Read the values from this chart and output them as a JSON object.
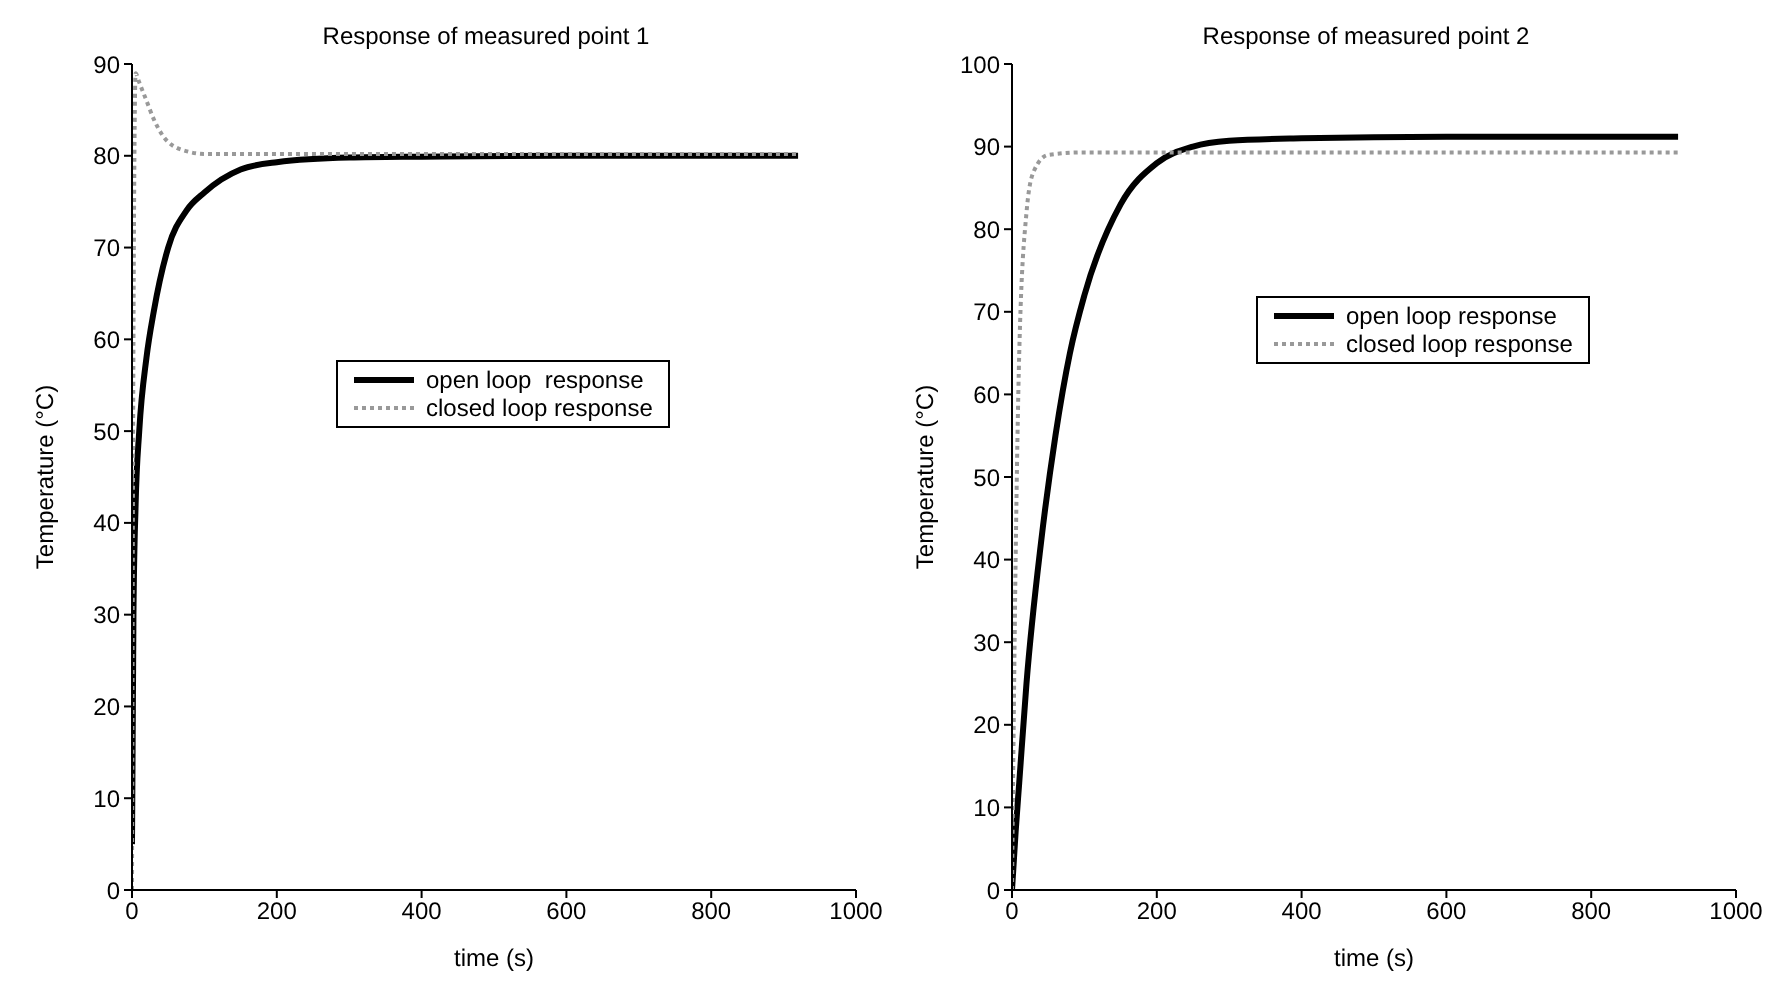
{
  "chart_data": [
    {
      "type": "line",
      "title": "Response of measured point 1",
      "xlabel": "time (s)",
      "ylabel": "Temperature (°C)",
      "xlim": [
        0,
        1000
      ],
      "xticks": [
        0,
        200,
        400,
        600,
        800,
        1000
      ],
      "ylim": [
        0,
        90
      ],
      "yticks": [
        0,
        10,
        20,
        30,
        40,
        50,
        60,
        70,
        80,
        90
      ],
      "grid": false,
      "legend": "center",
      "marker": "none",
      "series": [
        {
          "name": "open loop  response",
          "color": "#000000",
          "line_style": "solid",
          "x": [
            0,
            2,
            5,
            10,
            20,
            30,
            50,
            75,
            100,
            150,
            200,
            300,
            400,
            600,
            920
          ],
          "values": [
            5,
            30,
            42,
            50,
            58,
            63,
            70,
            74,
            76,
            78.5,
            79.3,
            79.8,
            79.9,
            80,
            80
          ]
        },
        {
          "name": "closed loop response",
          "color": "#999999",
          "line_style": "dotted",
          "x": [
            0,
            2,
            5,
            10,
            20,
            30,
            50,
            80,
            100,
            200,
            400,
            600,
            920
          ],
          "values": [
            0,
            60,
            89,
            88,
            86,
            84,
            81.5,
            80.4,
            80.2,
            80.2,
            80.2,
            80.2,
            80.2
          ]
        }
      ]
    },
    {
      "type": "line",
      "title": "Response of measured point 2",
      "xlabel": "time (s)",
      "ylabel": "Temperature (°C)",
      "xlim": [
        0,
        1000
      ],
      "xticks": [
        0,
        200,
        400,
        600,
        800,
        1000
      ],
      "ylim": [
        0,
        100
      ],
      "yticks": [
        0,
        10,
        20,
        30,
        40,
        50,
        60,
        70,
        80,
        90,
        100
      ],
      "grid": false,
      "legend": "center right",
      "marker": "none",
      "series": [
        {
          "name": "open loop response",
          "color": "#000000",
          "line_style": "solid",
          "x": [
            0,
            5,
            10,
            20,
            40,
            60,
            80,
            100,
            150,
            200,
            250,
            300,
            400,
            600,
            920
          ],
          "values": [
            0,
            7,
            13,
            25,
            42,
            55,
            65,
            72,
            83,
            88,
            90,
            90.7,
            91,
            91.2,
            91.2
          ]
        },
        {
          "name": "closed loop response",
          "color": "#999999",
          "line_style": "dotted",
          "x": [
            0,
            5,
            10,
            20,
            30,
            50,
            100,
            200,
            400,
            600,
            920
          ],
          "values": [
            0,
            40,
            65,
            82,
            87,
            89,
            89.3,
            89.3,
            89.3,
            89.3,
            89.3
          ]
        }
      ]
    }
  ]
}
